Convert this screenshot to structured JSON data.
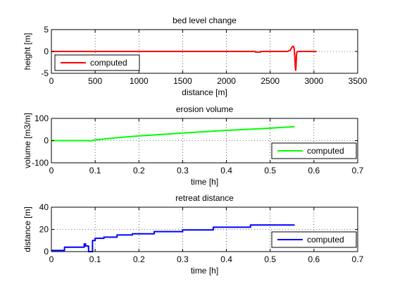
{
  "chart_data": [
    {
      "type": "line",
      "title": "bed level change",
      "xlabel": "distance [m]",
      "ylabel": "height [m]",
      "xlim": [
        0,
        3500
      ],
      "ylim": [
        -5,
        5
      ],
      "xticks": [
        0,
        500,
        1000,
        1500,
        2000,
        2500,
        3000,
        3500
      ],
      "yticks": [
        -5,
        0,
        5
      ],
      "legend": {
        "label": "computed",
        "position": "bottom-left"
      },
      "series": [
        {
          "name": "computed",
          "color": "#ff0000",
          "x": [
            0,
            2330,
            2331,
            2390,
            2391,
            2700,
            2730,
            2750,
            2765,
            2775,
            2782,
            2788,
            2792,
            2796,
            2800,
            2805,
            2815,
            2840,
            3030
          ],
          "y": [
            0,
            0,
            -0.15,
            -0.15,
            0,
            0,
            0.3,
            1.0,
            1.2,
            0.6,
            -1.5,
            -3.8,
            -4.3,
            -3.2,
            -1.0,
            -0.2,
            0,
            0,
            0
          ]
        }
      ]
    },
    {
      "type": "line",
      "title": "erosion volume",
      "xlabel": "time [h]",
      "ylabel": "volume [m3/m]",
      "xlim": [
        0,
        0.7
      ],
      "ylim": [
        -100,
        100
      ],
      "xticks": [
        0,
        0.1,
        0.2,
        0.3,
        0.4,
        0.5,
        0.6,
        0.7
      ],
      "yticks": [
        -100,
        0,
        100
      ],
      "legend": {
        "label": "computed",
        "position": "bottom-right"
      },
      "series": [
        {
          "name": "computed",
          "color": "#00ff00",
          "x": [
            0,
            0.08,
            0.09,
            0.1,
            0.15,
            0.2,
            0.3,
            0.4,
            0.5,
            0.556
          ],
          "y": [
            0,
            0,
            -1,
            3,
            13,
            21,
            34,
            46,
            56,
            63
          ]
        }
      ]
    },
    {
      "type": "line",
      "title": "retreat distance",
      "xlabel": "time [h]",
      "ylabel": "distance [m]",
      "xlim": [
        0,
        0.7
      ],
      "ylim": [
        0,
        40
      ],
      "xticks": [
        0,
        0.1,
        0.2,
        0.3,
        0.4,
        0.5,
        0.6,
        0.7
      ],
      "yticks": [
        0,
        20,
        40
      ],
      "legend": {
        "label": "computed",
        "position": "bottom-right"
      },
      "series": [
        {
          "name": "computed",
          "color": "#0000ff",
          "x": [
            0,
            0.03,
            0.03,
            0.075,
            0.075,
            0.078,
            0.078,
            0.085,
            0.085,
            0.094,
            0.094,
            0.1,
            0.1,
            0.12,
            0.12,
            0.15,
            0.15,
            0.185,
            0.185,
            0.235,
            0.235,
            0.3,
            0.3,
            0.37,
            0.37,
            0.455,
            0.455,
            0.556
          ],
          "y": [
            1,
            1,
            4,
            4,
            7,
            7,
            5,
            5,
            0,
            0,
            10,
            10,
            12,
            12,
            13,
            13,
            15,
            15,
            16,
            16,
            18,
            18,
            19.5,
            19.5,
            22,
            22,
            24,
            24
          ]
        }
      ]
    }
  ]
}
